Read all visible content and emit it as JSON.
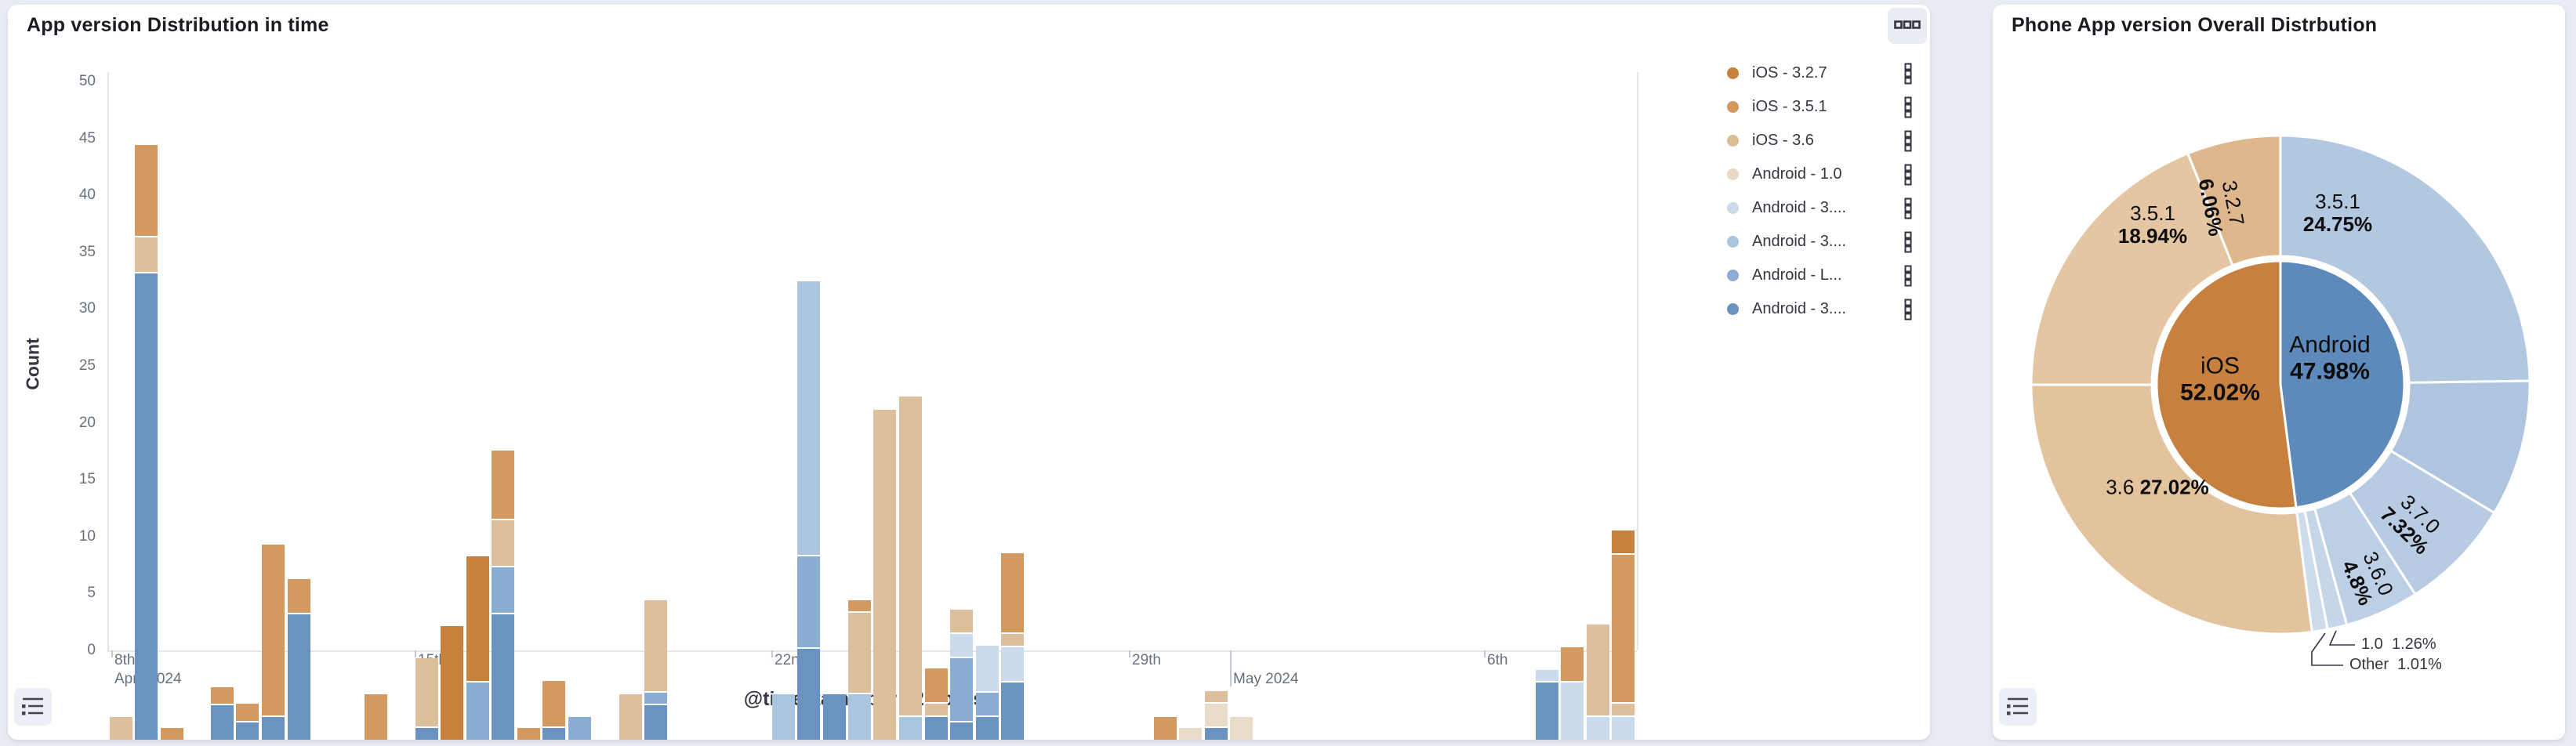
{
  "page": {
    "background_color": "#e9edf3"
  },
  "panels": {
    "timeseries": {
      "title": "App version Distribution in time",
      "options_icon": "boxes-horizontal-icon",
      "legend_toggle_icon": "legend-list-icon",
      "legend": {
        "position": "right",
        "items": [
          {
            "key": "i327",
            "label": "iOS - 3.2.7",
            "color": "#c8813a"
          },
          {
            "key": "i351",
            "label": "iOS - 3.5.1",
            "color": "#d3995f"
          },
          {
            "key": "i36",
            "label": "iOS - 3.6",
            "color": "#dcbd97"
          },
          {
            "key": "a10",
            "label": "Android - 1.0",
            "color": "#e7d9c4"
          },
          {
            "key": "b_pale",
            "label": "Android - 3....",
            "color": "#cbdbeb"
          },
          {
            "key": "b_light",
            "label": "Android - 3....",
            "color": "#aac5df"
          },
          {
            "key": "b_med",
            "label": "Android - L...",
            "color": "#8badd3"
          },
          {
            "key": "b_dark",
            "label": "Android - 3....",
            "color": "#6b93c1"
          }
        ]
      }
    },
    "pie": {
      "title": "Phone App version Overall Distrbution",
      "legend_toggle_icon": "legend-list-icon"
    }
  },
  "chart_data": [
    {
      "type": "bar",
      "stacked": true,
      "title": "App version Distribution in time",
      "xlabel": "@timestamp per 12 hours",
      "ylabel": "Count",
      "ylim": [
        0,
        50.6
      ],
      "y_ticks": [
        0,
        5,
        10,
        15,
        20,
        25,
        30,
        35,
        40,
        45,
        50
      ],
      "x_ticks": [
        {
          "label": "8th",
          "x": 132,
          "row": 1,
          "stub": true,
          "long": false
        },
        {
          "label": "April 2024",
          "x": 132,
          "row": 2,
          "stub": false,
          "long": false
        },
        {
          "label": "15th",
          "x": 519,
          "row": 1,
          "stub": true,
          "long": false
        },
        {
          "label": "22nd",
          "x": 974,
          "row": 1,
          "stub": true,
          "long": false
        },
        {
          "label": "29th",
          "x": 1430,
          "row": 1,
          "stub": true,
          "long": false
        },
        {
          "label": "May 2024",
          "x": 1559,
          "row": 2,
          "stub": true,
          "long": true
        },
        {
          "label": "6th",
          "x": 1883,
          "row": 1,
          "stub": true,
          "long": false
        }
      ],
      "series_colors": {
        "i327": "#c8813a",
        "i351": "#d3995f",
        "i36": "#dcc09e",
        "a10": "#e8dbc8",
        "b_pale": "#cbdbeb",
        "b_light": "#aac5df",
        "b_med": "#8badd3",
        "b_dark": "#6b93c1"
      },
      "bars": [
        {
          "x": 130,
          "stack": [
            [
              "i36",
              2
            ]
          ]
        },
        {
          "x": 162,
          "stack": [
            [
              "b_dark",
              41
            ],
            [
              "i36",
              3
            ],
            [
              "i351",
              8
            ]
          ]
        },
        {
          "x": 195,
          "stack": [
            [
              "i351",
              1
            ]
          ]
        },
        {
          "x": 259,
          "stack": [
            [
              "b_dark",
              3
            ],
            [
              "i351",
              1.5
            ]
          ]
        },
        {
          "x": 291,
          "stack": [
            [
              "b_dark",
              1.5
            ],
            [
              "i351",
              1.5
            ]
          ]
        },
        {
          "x": 324,
          "stack": [
            [
              "b_dark",
              2
            ],
            [
              "i351",
              15
            ]
          ]
        },
        {
          "x": 357,
          "stack": [
            [
              "b_dark",
              11
            ],
            [
              "i351",
              3
            ]
          ]
        },
        {
          "x": 455,
          "stack": [
            [
              "i351",
              4
            ]
          ]
        },
        {
          "x": 520,
          "stack": [
            [
              "b_dark",
              1
            ],
            [
              "i36",
              6
            ]
          ]
        },
        {
          "x": 552,
          "stack": [
            [
              "i327",
              10
            ]
          ]
        },
        {
          "x": 585,
          "stack": [
            [
              "b_med",
              5
            ],
            [
              "i327",
              11
            ]
          ]
        },
        {
          "x": 617,
          "stack": [
            [
              "b_dark",
              11
            ],
            [
              "b_med",
              4
            ],
            [
              "i36",
              4
            ],
            [
              "i351",
              6
            ]
          ]
        },
        {
          "x": 650,
          "stack": [
            [
              "i351",
              1
            ]
          ]
        },
        {
          "x": 682,
          "stack": [
            [
              "b_dark",
              1
            ],
            [
              "i351",
              4
            ]
          ]
        },
        {
          "x": 715,
          "stack": [
            [
              "b_med",
              2
            ]
          ]
        },
        {
          "x": 780,
          "stack": [
            [
              "i36",
              4
            ]
          ]
        },
        {
          "x": 812,
          "stack": [
            [
              "b_dark",
              3
            ],
            [
              "b_med",
              1
            ],
            [
              "i36",
              8
            ]
          ]
        },
        {
          "x": 975,
          "stack": [
            [
              "b_light",
              4
            ]
          ]
        },
        {
          "x": 1007,
          "stack": [
            [
              "b_dark",
              8
            ],
            [
              "b_med",
              8
            ],
            [
              "b_light",
              24
            ]
          ]
        },
        {
          "x": 1040,
          "stack": [
            [
              "b_dark",
              4
            ]
          ]
        },
        {
          "x": 1072,
          "stack": [
            [
              "b_light",
              4
            ],
            [
              "i36",
              7
            ],
            [
              "i351",
              1
            ]
          ]
        },
        {
          "x": 1104,
          "stack": [
            [
              "i36",
              29
            ]
          ]
        },
        {
          "x": 1137,
          "stack": [
            [
              "b_light",
              2
            ],
            [
              "i36",
              28
            ]
          ]
        },
        {
          "x": 1170,
          "stack": [
            [
              "b_dark",
              2
            ],
            [
              "i36",
              1
            ],
            [
              "i351",
              3
            ]
          ]
        },
        {
          "x": 1202,
          "stack": [
            [
              "b_dark",
              1.5
            ],
            [
              "b_med",
              5.5
            ],
            [
              "b_pale",
              2
            ],
            [
              "i36",
              2
            ]
          ]
        },
        {
          "x": 1235,
          "stack": [
            [
              "b_dark",
              2
            ],
            [
              "b_med",
              2
            ],
            [
              "b_pale",
              4
            ]
          ]
        },
        {
          "x": 1267,
          "stack": [
            [
              "b_dark",
              5
            ],
            [
              "b_pale",
              3
            ],
            [
              "i36",
              1
            ],
            [
              "i351",
              7
            ]
          ]
        },
        {
          "x": 1462,
          "stack": [
            [
              "i351",
              2
            ]
          ]
        },
        {
          "x": 1494,
          "stack": [
            [
              "a10",
              1
            ]
          ]
        },
        {
          "x": 1527,
          "stack": [
            [
              "b_dark",
              1
            ],
            [
              "a10",
              2
            ],
            [
              "i36",
              1
            ]
          ]
        },
        {
          "x": 1559,
          "stack": [
            [
              "a10",
              2
            ]
          ]
        },
        {
          "x": 1949,
          "stack": [
            [
              "b_dark",
              5
            ],
            [
              "b_pale",
              1
            ]
          ]
        },
        {
          "x": 1981,
          "stack": [
            [
              "b_pale",
              5
            ],
            [
              "i351",
              3
            ]
          ]
        },
        {
          "x": 2014,
          "stack": [
            [
              "b_pale",
              2
            ],
            [
              "i36",
              8
            ]
          ]
        },
        {
          "x": 2046,
          "stack": [
            [
              "b_pale",
              2
            ],
            [
              "i36",
              1
            ],
            [
              "i351",
              13
            ],
            [
              "i327",
              2
            ]
          ]
        }
      ]
    },
    {
      "type": "pie",
      "subtype": "sunburst-donut",
      "title": "Phone App version Overall Distrbution",
      "inner_ring": [
        {
          "id": "android_inner",
          "label": "Android",
          "pct_label": "47.98%",
          "value": 47.98,
          "color": "#5e8abb"
        },
        {
          "id": "ios_inner",
          "label": "iOS",
          "pct_label": "52.02%",
          "value": 52.02,
          "color": "#c8803e"
        }
      ],
      "outer_ring": [
        {
          "id": "a351",
          "parent": "Android",
          "label": "3.5.1",
          "pct_label": "24.75%",
          "value": 24.75,
          "color": "#b2c7e0",
          "label_mode": "horizontal"
        },
        {
          "id": "a_unk",
          "parent": "Android",
          "label": "",
          "pct_label": "",
          "value": 8.84,
          "color": "#afc4de",
          "label_mode": "none"
        },
        {
          "id": "a370",
          "parent": "Android",
          "label": "3.7.0",
          "pct_label": "7.32%",
          "value": 7.32,
          "color": "#b7cbe3",
          "label_mode": "rotated"
        },
        {
          "id": "a360",
          "parent": "Android",
          "label": "3.6.0",
          "pct_label": "4.8%",
          "value": 4.8,
          "color": "#bdcfe5",
          "label_mode": "rotated"
        },
        {
          "id": "a10",
          "parent": "Android",
          "label": "1.0",
          "pct_label": "1.26%",
          "value": 1.26,
          "color": "#c6d6e9",
          "label_mode": "leader"
        },
        {
          "id": "aother",
          "parent": "Android",
          "label": "Other",
          "pct_label": "1.01%",
          "value": 1.01,
          "color": "#cddbeb",
          "label_mode": "leader"
        },
        {
          "id": "i36",
          "parent": "iOS",
          "label": "3.6",
          "pct_label": "27.02%",
          "value": 27.02,
          "color": "#e3c39e",
          "label_mode": "inline"
        },
        {
          "id": "i351",
          "parent": "iOS",
          "label": "3.5.1",
          "pct_label": "18.94%",
          "value": 18.94,
          "color": "#e5c6a3",
          "label_mode": "horizontal"
        },
        {
          "id": "i327",
          "parent": "iOS",
          "label": "3.2.7",
          "pct_label": "6.06%",
          "value": 6.06,
          "color": "#deb88c",
          "label_mode": "rotated"
        }
      ]
    }
  ]
}
